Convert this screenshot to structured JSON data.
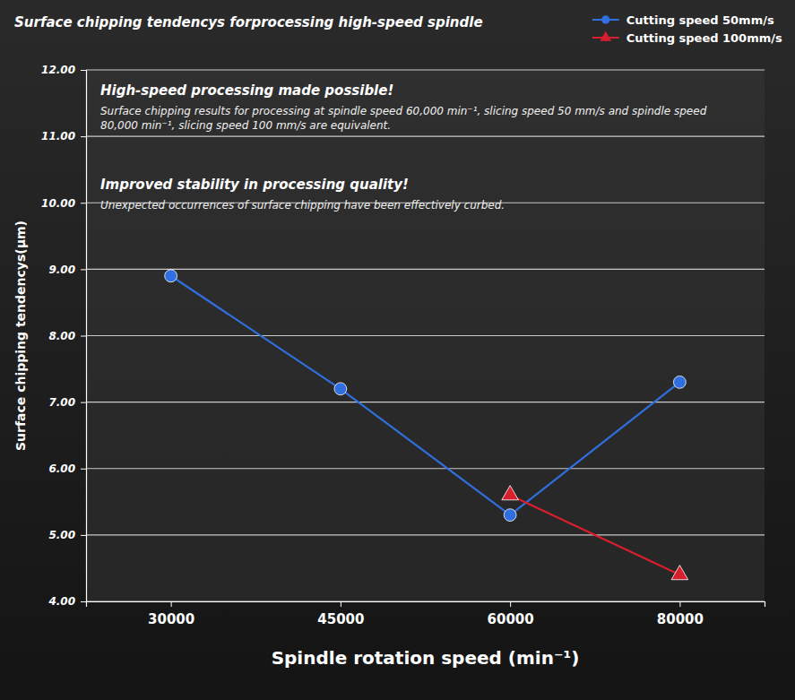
{
  "chart_data": {
    "type": "line",
    "title": "Surface chipping tendencys forprocessing high-speed spindle",
    "x_label": "Spindle rotation speed (min⁻¹)",
    "y_label": "Surface chipping tendencys(μm)",
    "annotations": [
      {
        "heading": "High-speed processing made possible!",
        "text": "Surface chipping results for processing at spindle speed 60,000 min⁻¹, slicing speed 50 mm/s and spindle speed 80,000 min⁻¹, slicing speed 100 mm/s are equivalent."
      },
      {
        "heading": "Improved stability in processing quality!",
        "text": "Unexpected occurrences of surface chipping have been effectively curbed."
      }
    ],
    "categories": [
      30000,
      45000,
      60000,
      80000
    ],
    "series": [
      {
        "name": "Cutting speed 50mm/s",
        "color": "#2f6fe0",
        "marker": "circle",
        "values": [
          8.9,
          7.2,
          5.3,
          7.3
        ]
      },
      {
        "name": "Cutting speed 100mm/s",
        "color": "#d81f2e",
        "marker": "triangle",
        "values": [
          null,
          null,
          5.6,
          4.4
        ]
      }
    ],
    "ylim": [
      4,
      12
    ],
    "yticks": [
      {
        "value": 4,
        "label": "4.00"
      },
      {
        "value": 5,
        "label": "5.00"
      },
      {
        "value": 6,
        "label": "6.00"
      },
      {
        "value": 7,
        "label": "7.00"
      },
      {
        "value": 8,
        "label": "8.00"
      },
      {
        "value": 9,
        "label": "9.00"
      },
      {
        "value": 10,
        "label": "10.00"
      },
      {
        "value": 11,
        "label": "11.00"
      },
      {
        "value": 12,
        "label": "12.00"
      }
    ],
    "grid": true,
    "legend": "top-right"
  }
}
